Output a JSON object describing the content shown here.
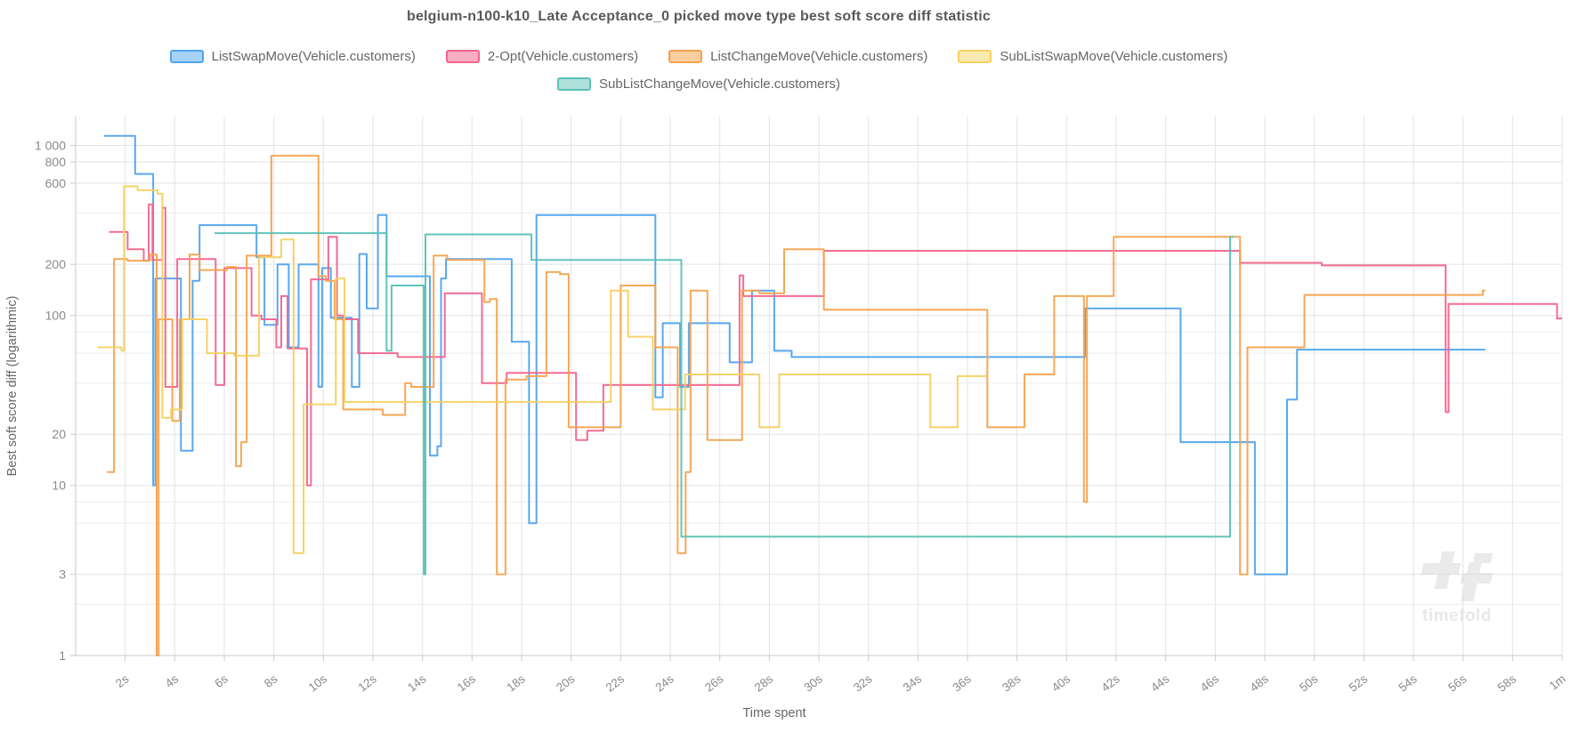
{
  "title": "belgium-n100-k10_Late Acceptance_0 picked move type best soft score diff statistic",
  "watermark": "timefold",
  "axes": {
    "x": {
      "label": "Time spent",
      "min": 0,
      "max": 60,
      "tick_step_seconds": 2,
      "tick_labels": [
        "2s",
        "4s",
        "6s",
        "8s",
        "10s",
        "12s",
        "14s",
        "16s",
        "18s",
        "20s",
        "22s",
        "24s",
        "26s",
        "28s",
        "30s",
        "32s",
        "34s",
        "36s",
        "38s",
        "40s",
        "42s",
        "44s",
        "46s",
        "48s",
        "50s",
        "52s",
        "54s",
        "56s",
        "58s",
        "1m"
      ]
    },
    "y": {
      "label": "Best soft score diff (logarithmic)",
      "scale": "log",
      "domain": [
        1,
        1480
      ],
      "labeled_ticks": [
        [
          1,
          "1"
        ],
        [
          3,
          "3"
        ],
        [
          10,
          "10"
        ],
        [
          20,
          "20"
        ],
        [
          100,
          "100"
        ],
        [
          200,
          "200"
        ],
        [
          600,
          "600"
        ],
        [
          800,
          "800"
        ],
        [
          1000,
          "1 000"
        ]
      ],
      "minor_gridlines": [
        2,
        6,
        8,
        40,
        60,
        80,
        400
      ]
    }
  },
  "colors": {
    "grid_minor": "#ededed",
    "grid_major": "#e3e3e3",
    "axis_line": "#c9c9c9",
    "tick_text": "#8a8a8a",
    "axis_title": "#666666",
    "title_text": "#595959"
  },
  "chart_data": {
    "type": "line-step",
    "x_unit": "seconds",
    "legend_position": "top",
    "series": [
      {
        "name": "ListSwapMove(Vehicle.customers)",
        "color": "#4fa3ee",
        "fill": "#a6d2f5",
        "points": [
          [
            1.15,
            1140
          ],
          [
            2.4,
            680
          ],
          [
            3.13,
            10
          ],
          [
            3.22,
            165
          ],
          [
            4.25,
            16
          ],
          [
            4.72,
            160
          ],
          [
            5.0,
            340
          ],
          [
            7.3,
            220
          ],
          [
            7.62,
            88
          ],
          [
            8.15,
            200
          ],
          [
            8.6,
            65
          ],
          [
            9.0,
            200
          ],
          [
            9.8,
            38
          ],
          [
            9.95,
            190
          ],
          [
            10.3,
            97
          ],
          [
            11.15,
            38
          ],
          [
            11.45,
            230
          ],
          [
            11.75,
            110
          ],
          [
            12.2,
            390
          ],
          [
            12.55,
            170
          ],
          [
            14.3,
            15
          ],
          [
            14.6,
            17
          ],
          [
            14.75,
            165
          ],
          [
            14.95,
            215
          ],
          [
            17.6,
            70
          ],
          [
            18.3,
            6
          ],
          [
            18.6,
            390
          ],
          [
            23.4,
            33
          ],
          [
            23.7,
            90
          ],
          [
            24.4,
            38
          ],
          [
            24.75,
            90
          ],
          [
            26.4,
            53
          ],
          [
            27.3,
            140
          ],
          [
            28.2,
            62
          ],
          [
            28.9,
            57
          ],
          [
            40.75,
            110
          ],
          [
            44.6,
            18
          ],
          [
            47.6,
            3
          ],
          [
            48.9,
            32
          ],
          [
            49.3,
            63
          ],
          [
            56.9,
            63
          ]
        ]
      },
      {
        "name": "2-Opt(Vehicle.customers)",
        "color": "#f2648c",
        "fill": "#f8aec4",
        "points": [
          [
            1.35,
            310
          ],
          [
            2.1,
            245
          ],
          [
            2.75,
            210
          ],
          [
            2.95,
            450
          ],
          [
            3.1,
            212
          ],
          [
            3.5,
            430
          ],
          [
            3.62,
            38
          ],
          [
            4.1,
            215
          ],
          [
            5.65,
            39
          ],
          [
            6.0,
            190
          ],
          [
            7.1,
            100
          ],
          [
            7.5,
            95
          ],
          [
            8.1,
            65
          ],
          [
            8.3,
            130
          ],
          [
            8.55,
            64
          ],
          [
            9.34,
            10
          ],
          [
            9.5,
            163
          ],
          [
            10.2,
            290
          ],
          [
            10.55,
            100
          ],
          [
            10.8,
            95
          ],
          [
            11.4,
            60
          ],
          [
            13.0,
            57
          ],
          [
            14.9,
            135
          ],
          [
            16.4,
            40
          ],
          [
            17.4,
            46
          ],
          [
            20.2,
            18.5
          ],
          [
            20.65,
            21
          ],
          [
            21.3,
            39
          ],
          [
            26.8,
            172
          ],
          [
            26.95,
            130
          ],
          [
            30.2,
            240
          ],
          [
            47.0,
            204
          ],
          [
            50.3,
            197
          ],
          [
            55.3,
            27
          ],
          [
            55.42,
            117
          ],
          [
            59.8,
            96
          ],
          [
            60,
            96
          ]
        ]
      },
      {
        "name": "ListChangeMove(Vehicle.customers)",
        "color": "#f5a24e",
        "fill": "#facfa0",
        "points": [
          [
            1.27,
            12
          ],
          [
            1.55,
            215
          ],
          [
            2.1,
            210
          ],
          [
            3.0,
            228
          ],
          [
            3.27,
            1
          ],
          [
            3.35,
            95
          ],
          [
            3.9,
            24
          ],
          [
            4.2,
            95
          ],
          [
            4.6,
            228
          ],
          [
            5.0,
            185
          ],
          [
            6.1,
            193
          ],
          [
            6.47,
            13
          ],
          [
            6.68,
            18
          ],
          [
            6.9,
            225
          ],
          [
            7.9,
            870
          ],
          [
            9.8,
            170
          ],
          [
            10.1,
            160
          ],
          [
            10.45,
            95
          ],
          [
            10.8,
            28
          ],
          [
            12.4,
            26
          ],
          [
            13.3,
            40
          ],
          [
            13.55,
            38
          ],
          [
            14.45,
            225
          ],
          [
            15.0,
            212
          ],
          [
            16.5,
            120
          ],
          [
            16.72,
            125
          ],
          [
            17.0,
            3
          ],
          [
            17.35,
            42
          ],
          [
            18.2,
            44
          ],
          [
            19.0,
            180
          ],
          [
            19.55,
            175
          ],
          [
            19.9,
            22
          ],
          [
            22.0,
            150
          ],
          [
            23.4,
            65
          ],
          [
            24.3,
            4
          ],
          [
            24.62,
            12
          ],
          [
            24.82,
            140
          ],
          [
            25.5,
            18.5
          ],
          [
            26.9,
            140
          ],
          [
            27.6,
            135
          ],
          [
            28.6,
            245
          ],
          [
            30.2,
            108
          ],
          [
            36.8,
            22
          ],
          [
            38.3,
            45
          ],
          [
            39.5,
            130
          ],
          [
            40.7,
            8
          ],
          [
            40.82,
            130
          ],
          [
            41.9,
            290
          ],
          [
            47.0,
            3
          ],
          [
            47.3,
            65
          ],
          [
            49.6,
            132
          ],
          [
            56.8,
            140
          ],
          [
            56.9,
            140
          ]
        ]
      },
      {
        "name": "SubListSwapMove(Vehicle.customers)",
        "color": "#f6d060",
        "fill": "#fbe9b2",
        "points": [
          [
            0.9,
            65
          ],
          [
            1.85,
            62
          ],
          [
            1.95,
            575
          ],
          [
            2.5,
            545
          ],
          [
            3.3,
            520
          ],
          [
            3.5,
            25
          ],
          [
            3.85,
            28
          ],
          [
            4.3,
            95
          ],
          [
            5.3,
            60
          ],
          [
            6.4,
            58
          ],
          [
            7.4,
            220
          ],
          [
            8.3,
            280
          ],
          [
            8.8,
            4
          ],
          [
            9.2,
            30
          ],
          [
            10.5,
            165
          ],
          [
            10.85,
            31
          ],
          [
            21.6,
            140
          ],
          [
            22.3,
            75
          ],
          [
            23.3,
            28
          ],
          [
            24.6,
            45
          ],
          [
            27.6,
            22
          ],
          [
            28.4,
            45
          ],
          [
            34.5,
            22
          ],
          [
            35.6,
            44
          ],
          [
            36.8,
            44
          ]
        ]
      },
      {
        "name": "SubListChangeMove(Vehicle.customers)",
        "color": "#59c1b6",
        "fill": "#aee1db",
        "points": [
          [
            5.6,
            305
          ],
          [
            12.55,
            62
          ],
          [
            12.75,
            150
          ],
          [
            14.05,
            3
          ],
          [
            14.12,
            300
          ],
          [
            18.4,
            212
          ],
          [
            24.45,
            5
          ],
          [
            46.6,
            290
          ],
          [
            46.75,
            290
          ]
        ]
      }
    ]
  }
}
